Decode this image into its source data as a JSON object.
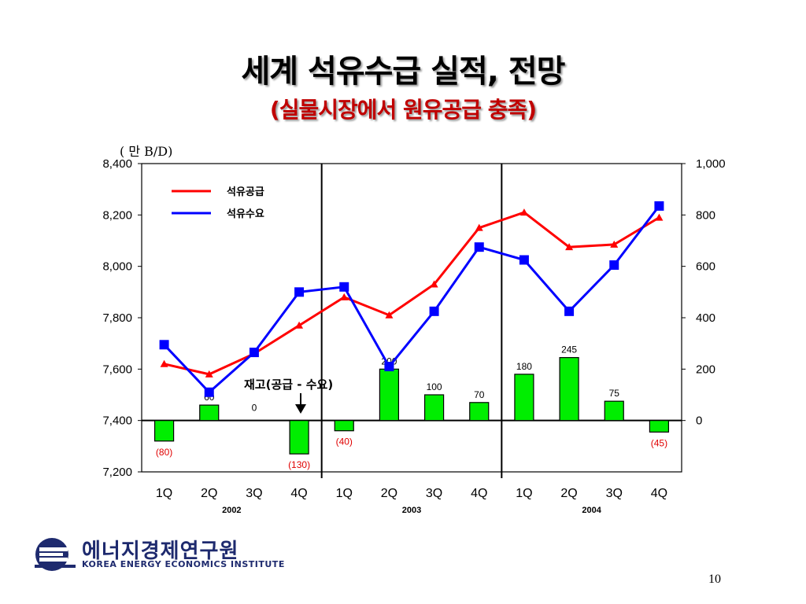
{
  "slide": {
    "title": "세계 석유수급 실적, 전망",
    "subtitle": "(실물시장에서 원유공급 충족)",
    "page_number": "10"
  },
  "logo": {
    "name_ko": "에너지경제연구원",
    "name_en": "KOREA ENERGY ECONOMICS INSTITUTE",
    "icon": "kee-logo-icon",
    "color": "#1e2a6e"
  },
  "chart_data": {
    "type": "line",
    "unit_label": "( 만 B/D)",
    "categories": [
      "1Q",
      "2Q",
      "3Q",
      "4Q",
      "1Q",
      "2Q",
      "3Q",
      "4Q",
      "1Q",
      "2Q",
      "3Q",
      "4Q"
    ],
    "year_labels": [
      "2002",
      "2003",
      "2004"
    ],
    "left_axis": {
      "ylim": [
        7200,
        8400
      ],
      "ticks": [
        "7,200",
        "7,400",
        "7,600",
        "7,800",
        "8,000",
        "8,200",
        "8,400"
      ]
    },
    "right_axis": {
      "ylim": [
        -200,
        1000
      ],
      "ticks": [
        "0",
        "200",
        "400",
        "600",
        "800",
        "1,000"
      ]
    },
    "series": [
      {
        "name": "석유공급",
        "color": "#ff0000",
        "marker": "triangle",
        "values": [
          7620,
          7580,
          7660,
          7770,
          7880,
          7810,
          7930,
          8150,
          8210,
          8075,
          8085,
          8190
        ]
      },
      {
        "name": "석유수요",
        "color": "#0000ff",
        "marker": "square",
        "values": [
          7695,
          7510,
          7665,
          7900,
          7920,
          7610,
          7825,
          8075,
          8025,
          7825,
          8005,
          8235
        ]
      }
    ],
    "bars": {
      "name": "재고(공급 - 수요)",
      "color": "#00ee00",
      "values": [
        -80,
        60,
        0,
        -130,
        -40,
        200,
        100,
        70,
        180,
        245,
        75,
        -45
      ],
      "labels": [
        "(80)",
        "60",
        "0",
        "(130)",
        "(40)",
        "200",
        "100",
        "70",
        "180",
        "245",
        "75",
        "(45)"
      ]
    },
    "annotation": "재고(공급 - 수요)",
    "legend_position": "top-left"
  }
}
